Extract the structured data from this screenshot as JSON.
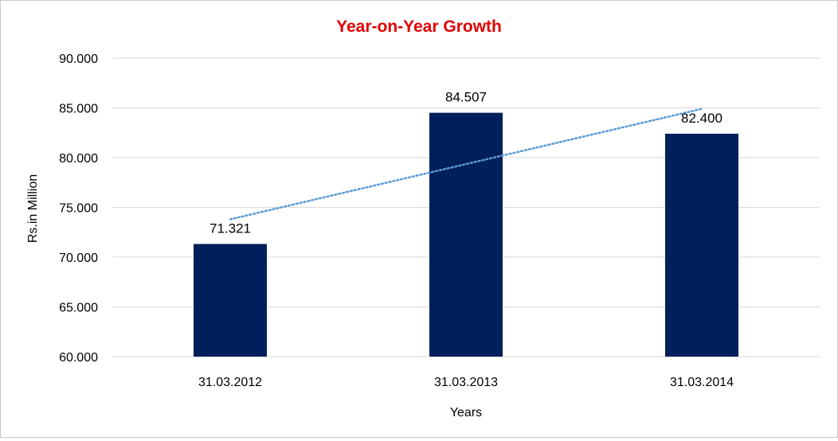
{
  "chart_data": {
    "type": "bar",
    "title": "Year-on-Year Growth",
    "xlabel": "Years",
    "ylabel": "Rs.in Million",
    "categories": [
      "31.03.2012",
      "31.03.2013",
      "31.03.2014"
    ],
    "values": [
      71.321,
      84.507,
      82.4
    ],
    "value_labels": [
      "71.321",
      "84.507",
      "82.400"
    ],
    "ylim": [
      60,
      90
    ],
    "yticks": [
      60,
      65,
      70,
      75,
      80,
      85,
      90
    ],
    "ytick_labels": [
      "60.000",
      "65.000",
      "70.000",
      "75.000",
      "80.000",
      "85.000",
      "90.000"
    ],
    "grid": true,
    "trendline": {
      "type": "linear",
      "style": "dotted",
      "start": 73.8,
      "end": 84.9
    },
    "colors": {
      "title": "#e00000",
      "bar": "#00205b",
      "trendline": "#5b9bd5",
      "grid": "#d9d9d9",
      "text": "#000000"
    }
  }
}
